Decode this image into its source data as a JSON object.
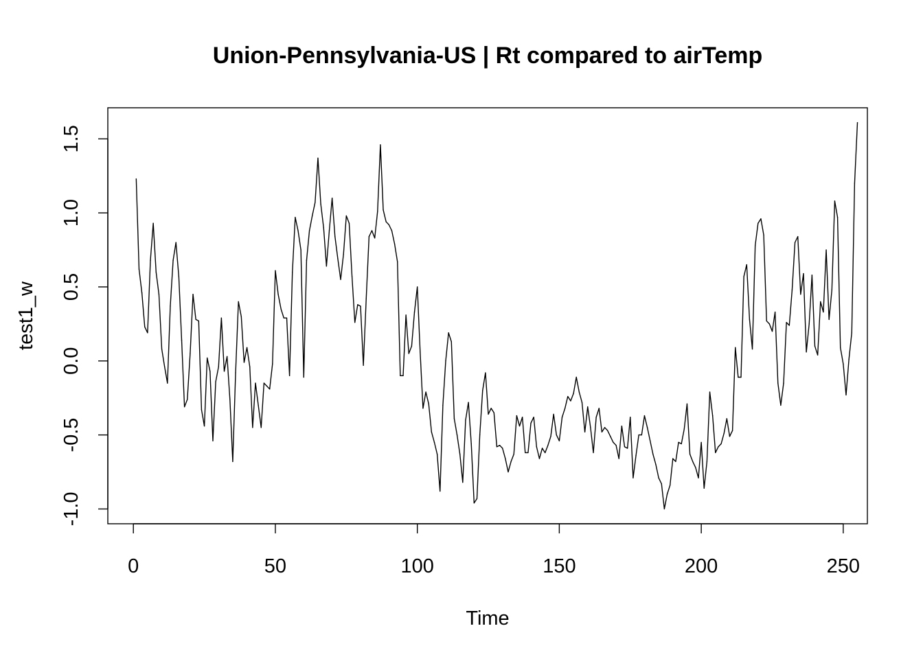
{
  "chart_data": {
    "type": "line",
    "title": "Union-Pennsylvania-US | Rt compared to airTemp",
    "xlabel": "Time",
    "ylabel": "test1_w",
    "xlim": [
      -9,
      258.5
    ],
    "ylim": [
      -1.1,
      1.71
    ],
    "x_ticks": [
      0,
      50,
      100,
      150,
      200,
      250
    ],
    "x_tick_labels": [
      "0",
      "50",
      "100",
      "150",
      "200",
      "250"
    ],
    "y_ticks": [
      -1.0,
      -0.5,
      0.0,
      0.5,
      1.0,
      1.5
    ],
    "y_tick_labels": [
      "-1.0",
      "-0.5",
      "0.0",
      "0.5",
      "1.0",
      "1.5"
    ],
    "grid": false,
    "series": [
      {
        "x_start": 1,
        "x_step": 1,
        "values": [
          1.23,
          0.62,
          0.46,
          0.23,
          0.19,
          0.68,
          0.93,
          0.6,
          0.45,
          0.08,
          -0.04,
          -0.15,
          0.37,
          0.68,
          0.8,
          0.57,
          0.14,
          -0.31,
          -0.26,
          0.05,
          0.45,
          0.28,
          0.27,
          -0.33,
          -0.44,
          0.02,
          -0.07,
          -0.54,
          -0.14,
          -0.04,
          0.29,
          -0.07,
          0.03,
          -0.26,
          -0.68,
          -0.08,
          0.4,
          0.3,
          -0.01,
          0.09,
          -0.04,
          -0.45,
          -0.15,
          -0.3,
          -0.45,
          -0.15,
          -0.17,
          -0.19,
          -0.02,
          0.61,
          0.45,
          0.35,
          0.29,
          0.29,
          -0.1,
          0.6,
          0.97,
          0.88,
          0.75,
          -0.11,
          0.68,
          0.88,
          0.98,
          1.07,
          1.37,
          1.06,
          0.9,
          0.64,
          0.88,
          1.1,
          0.84,
          0.69,
          0.55,
          0.72,
          0.98,
          0.93,
          0.57,
          0.26,
          0.38,
          0.37,
          -0.03,
          0.42,
          0.84,
          0.88,
          0.83,
          1.01,
          1.46,
          1.02,
          0.94,
          0.92,
          0.88,
          0.79,
          0.67,
          -0.1,
          -0.1,
          0.31,
          0.05,
          0.1,
          0.33,
          0.5,
          0.06,
          -0.32,
          -0.21,
          -0.29,
          -0.48,
          -0.55,
          -0.63,
          -0.88,
          -0.3,
          0.0,
          0.19,
          0.13,
          -0.39,
          -0.5,
          -0.63,
          -0.82,
          -0.4,
          -0.28,
          -0.56,
          -0.96,
          -0.93,
          -0.5,
          -0.2,
          -0.08,
          -0.36,
          -0.32,
          -0.35,
          -0.58,
          -0.57,
          -0.59,
          -0.66,
          -0.75,
          -0.68,
          -0.63,
          -0.37,
          -0.44,
          -0.38,
          -0.62,
          -0.62,
          -0.42,
          -0.38,
          -0.58,
          -0.66,
          -0.59,
          -0.62,
          -0.57,
          -0.51,
          -0.36,
          -0.5,
          -0.54,
          -0.38,
          -0.32,
          -0.24,
          -0.27,
          -0.22,
          -0.11,
          -0.21,
          -0.28,
          -0.48,
          -0.31,
          -0.45,
          -0.62,
          -0.38,
          -0.32,
          -0.48,
          -0.45,
          -0.47,
          -0.51,
          -0.55,
          -0.57,
          -0.66,
          -0.44,
          -0.58,
          -0.59,
          -0.38,
          -0.79,
          -0.64,
          -0.5,
          -0.5,
          -0.37,
          -0.45,
          -0.54,
          -0.63,
          -0.7,
          -0.79,
          -0.83,
          -1.0,
          -0.9,
          -0.84,
          -0.66,
          -0.68,
          -0.55,
          -0.56,
          -0.46,
          -0.29,
          -0.63,
          -0.68,
          -0.72,
          -0.79,
          -0.55,
          -0.86,
          -0.68,
          -0.21,
          -0.37,
          -0.62,
          -0.58,
          -0.56,
          -0.49,
          -0.39,
          -0.51,
          -0.47,
          0.09,
          -0.11,
          -0.11,
          0.57,
          0.65,
          0.28,
          0.08,
          0.78,
          0.93,
          0.96,
          0.85,
          0.27,
          0.25,
          0.2,
          0.33,
          -0.15,
          -0.3,
          -0.15,
          0.26,
          0.24,
          0.48,
          0.8,
          0.84,
          0.45,
          0.59,
          0.06,
          0.25,
          0.58,
          0.1,
          0.04,
          0.4,
          0.33,
          0.75,
          0.28,
          0.48,
          1.08,
          0.97,
          0.09,
          -0.02,
          -0.23,
          0.01,
          0.19,
          1.2,
          1.61
        ]
      }
    ]
  }
}
